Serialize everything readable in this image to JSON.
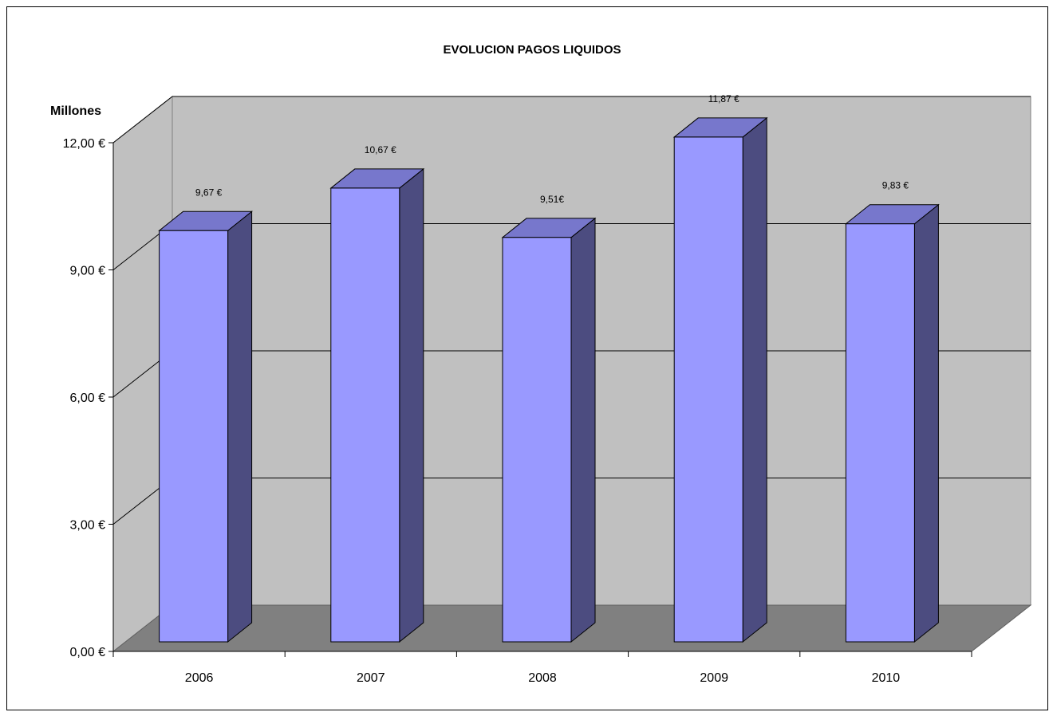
{
  "chart_data": {
    "type": "bar",
    "title": "EVOLUCION PAGOS LIQUIDOS",
    "ylabel": "Millones",
    "xlabel": "",
    "categories": [
      "2006",
      "2007",
      "2008",
      "2009",
      "2010"
    ],
    "values": [
      9.67,
      10.67,
      9.51,
      11.87,
      9.83
    ],
    "data_labels": [
      "9,67 €",
      "10,67 €",
      "9,51€",
      "11,87 €",
      "9,83 €"
    ],
    "ylim": [
      0,
      12
    ],
    "yticks": [
      0,
      3,
      6,
      9,
      12
    ],
    "ytick_labels": [
      "0,00 €",
      "3,00 €",
      "6,00 €",
      "9,00 €",
      "12,00 €"
    ],
    "grid": true,
    "legend": "none",
    "colors": {
      "bar_front": "#9999ff",
      "bar_top": "#7777cc",
      "bar_side": "#4c4c80",
      "wall": "#c0c0c0",
      "floor": "#808080"
    }
  }
}
